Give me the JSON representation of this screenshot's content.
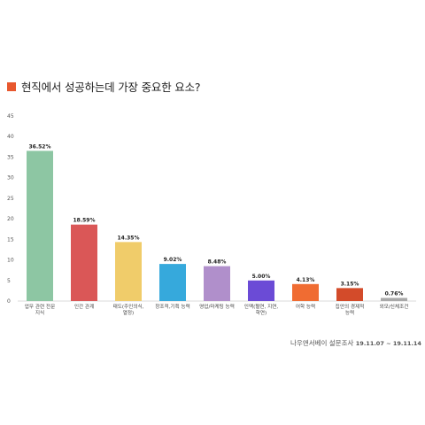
{
  "title": "현직에서 성공하는데 가장 중요한 요소?",
  "title_marker_color": "#e8582e",
  "source": {
    "label": "나우앤서베이 설문조사",
    "dates": "19.11.07 ~ 19.11.14"
  },
  "chart_data": {
    "type": "bar",
    "categories": [
      [
        "업무 관련 전문",
        "지식"
      ],
      [
        "인간 관계"
      ],
      [
        "태도(주인의식,",
        "열정)"
      ],
      [
        "창조적,기획 능력"
      ],
      [
        "영업/마케팅 능력"
      ],
      [
        "인맥(혈연, 지연,",
        "학연)"
      ],
      [
        "어학 능력"
      ],
      [
        "집안의 경제적",
        "능력"
      ],
      [
        "외모/신체조건"
      ]
    ],
    "values": [
      36.52,
      18.59,
      14.35,
      9.02,
      8.48,
      5.0,
      4.13,
      3.15,
      0.76
    ],
    "value_labels": [
      "36.52%",
      "18.59%",
      "14.35%",
      "9.02%",
      "8.48%",
      "5.00%",
      "4.13%",
      "3.15%",
      "0.76%"
    ],
    "colors": [
      "#8dc6a3",
      "#da5757",
      "#f0cc6a",
      "#36a9dc",
      "#b08fcb",
      "#6b4bd6",
      "#f06c32",
      "#d34b2a",
      "#a9a9a9"
    ],
    "yticks": [
      0,
      5,
      10,
      15,
      20,
      25,
      30,
      35,
      40,
      45
    ],
    "ylim": [
      0,
      45
    ],
    "grid": false,
    "xlabel": "",
    "ylabel": ""
  }
}
